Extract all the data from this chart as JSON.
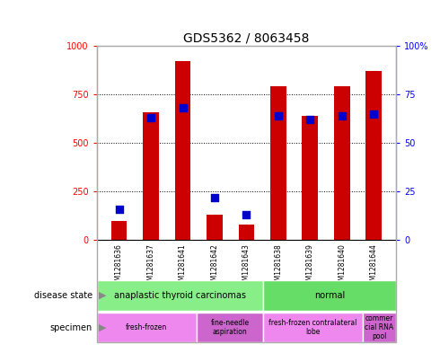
{
  "title": "GDS5362 / 8063458",
  "samples": [
    "GSM1281636",
    "GSM1281637",
    "GSM1281641",
    "GSM1281642",
    "GSM1281643",
    "GSM1281638",
    "GSM1281639",
    "GSM1281640",
    "GSM1281644"
  ],
  "counts": [
    100,
    660,
    920,
    130,
    80,
    790,
    640,
    790,
    870
  ],
  "percentiles": [
    16,
    63,
    68,
    22,
    13,
    64,
    62,
    64,
    65
  ],
  "ylim_left": [
    0,
    1000
  ],
  "ylim_right": [
    0,
    100
  ],
  "yticks_left": [
    0,
    250,
    500,
    750,
    1000
  ],
  "yticks_right": [
    0,
    25,
    50,
    75,
    100
  ],
  "bar_color": "#cc0000",
  "dot_color": "#0000cc",
  "disease_state_groups": [
    {
      "label": "anaplastic thyroid carcinomas",
      "start": 0,
      "end": 5,
      "color": "#88ee88"
    },
    {
      "label": "normal",
      "start": 5,
      "end": 9,
      "color": "#66dd66"
    }
  ],
  "specimen_groups": [
    {
      "label": "fresh-frozen",
      "start": 0,
      "end": 3,
      "color": "#ee88ee"
    },
    {
      "label": "fine-needle\naspiration",
      "start": 3,
      "end": 5,
      "color": "#cc66cc"
    },
    {
      "label": "fresh-frozen contralateral\nlobe",
      "start": 5,
      "end": 8,
      "color": "#ee88ee"
    },
    {
      "label": "commer\ncial RNA\npool",
      "start": 8,
      "end": 9,
      "color": "#cc66cc"
    }
  ],
  "tick_bg_color": "#cccccc",
  "bar_width": 0.5,
  "dot_size": 40,
  "grid_color": "#000000",
  "tick_fontsize": 7,
  "title_fontsize": 10,
  "annotation_fontsize": 8,
  "legend_fontsize": 7.5,
  "border_color": "#aaaaaa"
}
